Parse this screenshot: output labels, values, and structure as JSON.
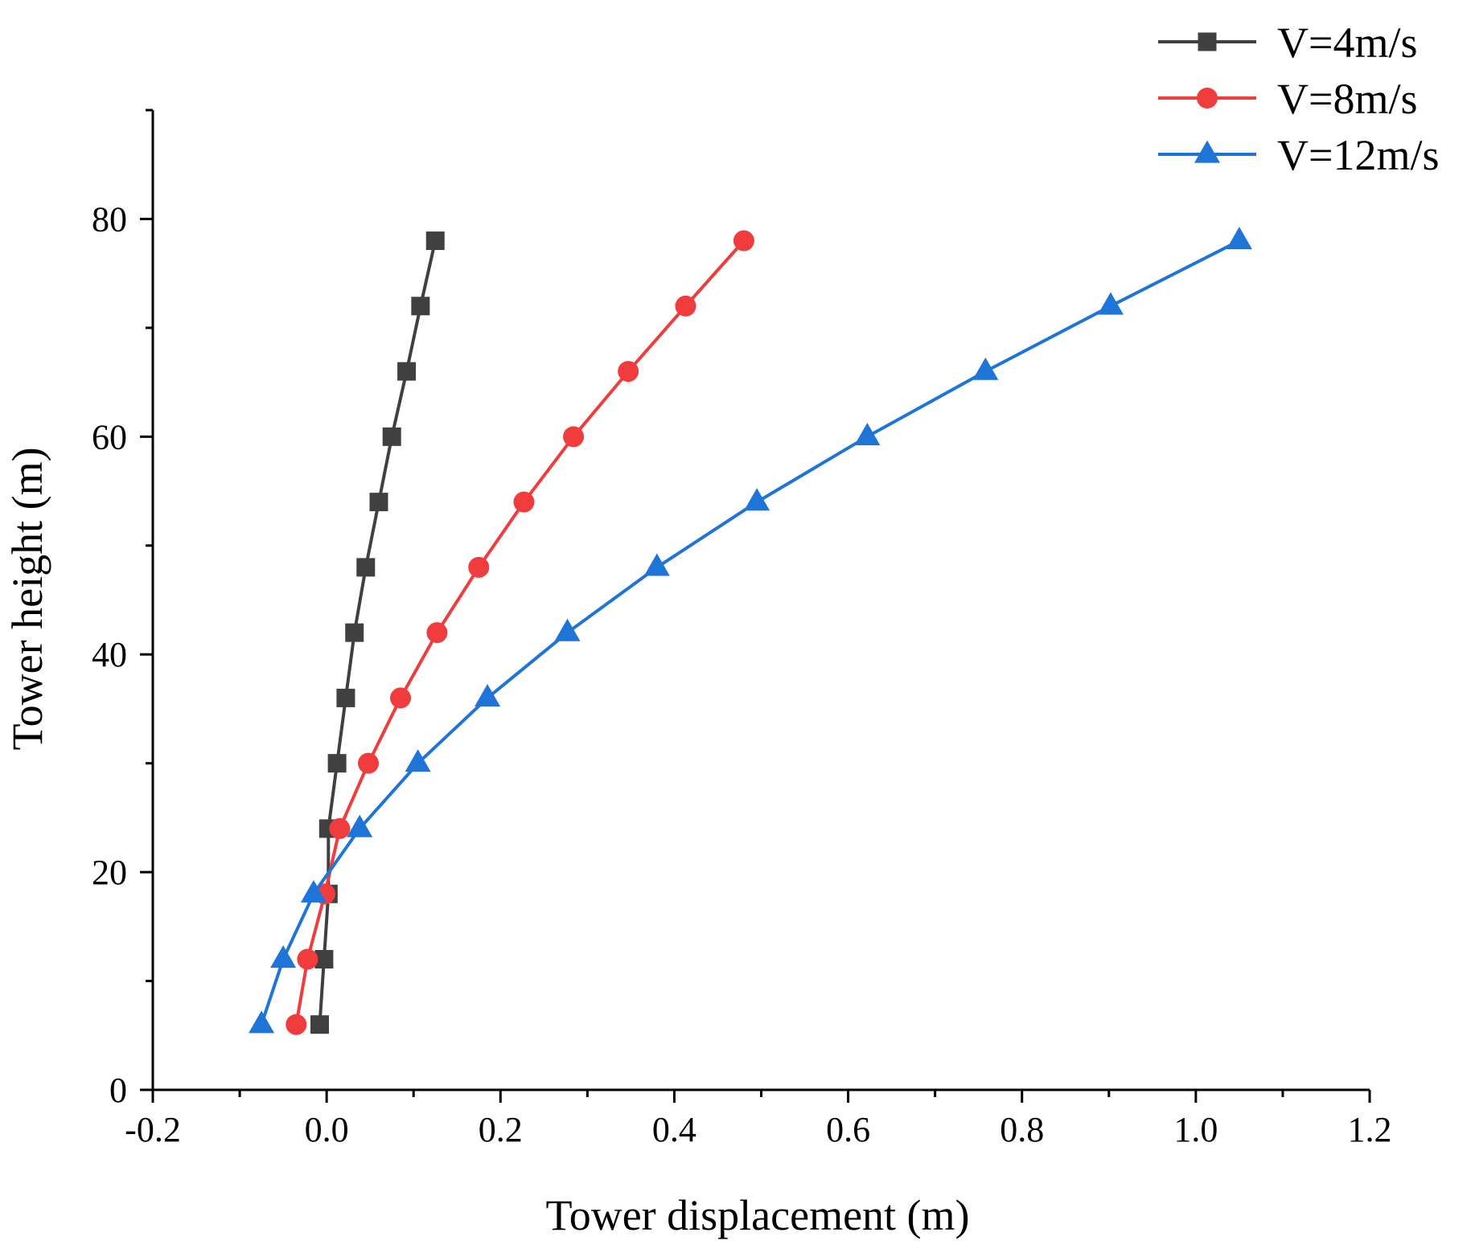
{
  "chart_data": {
    "type": "line",
    "title": "",
    "xlabel": "Tower displacement (m)",
    "ylabel": "Tower height (m)",
    "xlim": [
      -0.2,
      1.2
    ],
    "ylim": [
      0,
      90
    ],
    "x_ticks": [
      -0.2,
      0.0,
      0.2,
      0.4,
      0.6,
      0.8,
      1.0,
      1.2
    ],
    "x_tick_labels": [
      "-0.2",
      "0.0",
      "0.2",
      "0.4",
      "0.6",
      "0.8",
      "1.0",
      "1.2"
    ],
    "x_minor_ticks": [
      -0.1,
      0.1,
      0.3,
      0.5,
      0.7,
      0.9,
      1.1
    ],
    "y_ticks": [
      0,
      20,
      40,
      60,
      80
    ],
    "y_tick_labels": [
      "0",
      "20",
      "40",
      "60",
      "80"
    ],
    "y_minor_ticks": [
      10,
      30,
      50,
      70,
      90
    ],
    "grid": false,
    "legend_position": "top-right",
    "series": [
      {
        "name": "V=4m/s",
        "color": "#404040",
        "marker": "square",
        "x": [
          -0.008,
          -0.003,
          0.002,
          0.002,
          0.012,
          0.022,
          0.032,
          0.045,
          0.06,
          0.075,
          0.092,
          0.108,
          0.125
        ],
        "y": [
          6,
          12,
          18,
          24,
          30,
          36,
          42,
          48,
          54,
          60,
          66,
          72,
          78
        ]
      },
      {
        "name": "V=8m/s",
        "color": "#f03c3c",
        "marker": "circle",
        "x": [
          -0.035,
          -0.022,
          -0.002,
          0.015,
          0.048,
          0.085,
          0.127,
          0.175,
          0.227,
          0.284,
          0.347,
          0.413,
          0.48
        ],
        "y": [
          6,
          12,
          18,
          24,
          30,
          36,
          42,
          48,
          54,
          60,
          66,
          72,
          78
        ]
      },
      {
        "name": "V=12m/s",
        "color": "#1f74d8",
        "marker": "triangle",
        "x": [
          -0.075,
          -0.05,
          -0.015,
          0.038,
          0.105,
          0.185,
          0.277,
          0.38,
          0.495,
          0.622,
          0.758,
          0.902,
          1.05
        ],
        "y": [
          6,
          12,
          18,
          24,
          30,
          36,
          42,
          48,
          54,
          60,
          66,
          72,
          78
        ]
      }
    ]
  }
}
